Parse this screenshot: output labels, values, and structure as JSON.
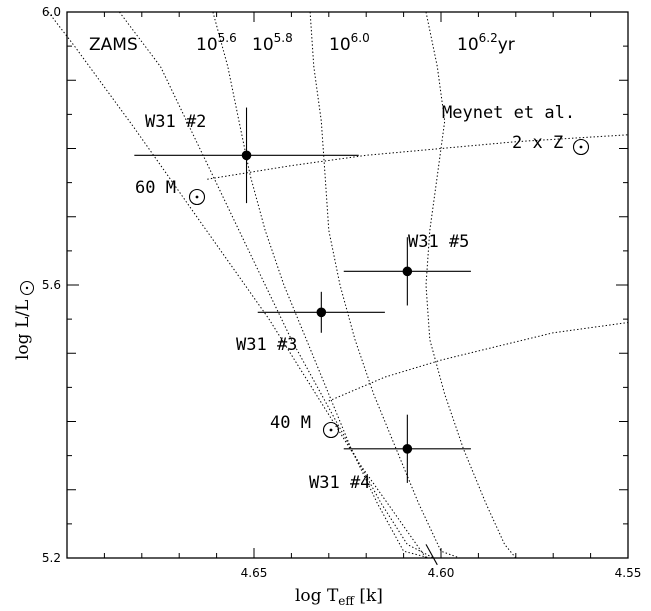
{
  "chart_data": {
    "type": "scatter",
    "title": "",
    "xlabel": "log T_eff [k]",
    "ylabel": "log L/L☉",
    "xlim": [
      4.7,
      4.55
    ],
    "ylim": [
      5.2,
      6.0
    ],
    "x_ticks": [
      "4.65",
      "4.60",
      "4.55"
    ],
    "y_ticks": [
      "5.2",
      "5.6",
      "6.0"
    ],
    "grid": false,
    "points": [
      {
        "name": "W31 #2",
        "x": 4.652,
        "y": 5.79,
        "xerr": 0.03,
        "yerr": 0.07
      },
      {
        "name": "W31 #5",
        "x": 4.609,
        "y": 5.62,
        "xerr": 0.017,
        "yerr": 0.05
      },
      {
        "name": "W31 #3",
        "x": 4.632,
        "y": 5.56,
        "xerr": 0.017,
        "yerr": 0.03
      },
      {
        "name": "W31 #4",
        "x": 4.609,
        "y": 5.36,
        "xerr": 0.017,
        "yerr": 0.05
      }
    ],
    "isochrones": [
      {
        "label_base": "10",
        "label_exp": "5.6",
        "label_suffix": "",
        "x": [
          4.686,
          4.675,
          4.668,
          4.661,
          4.654,
          4.647,
          4.64,
          4.632,
          4.624,
          4.616,
          4.609,
          4.602
        ],
        "y": [
          6.0,
          5.92,
          5.84,
          5.76,
          5.68,
          5.6,
          5.52,
          5.44,
          5.36,
          5.28,
          5.22,
          5.2
        ]
      },
      {
        "label_base": "10",
        "label_exp": "5.8",
        "label_suffix": "",
        "x": [
          4.661,
          4.657,
          4.654,
          4.651,
          4.647,
          4.642,
          4.636,
          4.63,
          4.624,
          4.617,
          4.61,
          4.603
        ],
        "y": [
          6.0,
          5.92,
          5.84,
          5.76,
          5.68,
          5.6,
          5.52,
          5.44,
          5.36,
          5.28,
          5.21,
          5.2
        ]
      },
      {
        "label_base": "10",
        "label_exp": "6.0",
        "label_suffix": "",
        "x": [
          4.635,
          4.634,
          4.632,
          4.631,
          4.63,
          4.627,
          4.623,
          4.618,
          4.612,
          4.606,
          4.6,
          4.595
        ],
        "y": [
          6.0,
          5.92,
          5.84,
          5.76,
          5.68,
          5.6,
          5.52,
          5.44,
          5.36,
          5.28,
          5.21,
          5.2
        ]
      },
      {
        "label_base": "10",
        "label_exp": "6.2",
        "label_suffix": "yr",
        "x": [
          4.604,
          4.601,
          4.599,
          4.601,
          4.603,
          4.604,
          4.603,
          4.599,
          4.594,
          4.588,
          4.583,
          4.58
        ],
        "y": [
          6.0,
          5.92,
          5.84,
          5.76,
          5.68,
          5.6,
          5.52,
          5.44,
          5.36,
          5.28,
          5.22,
          5.2
        ]
      }
    ],
    "tracks": [
      {
        "x": [
          4.6625,
          4.64,
          4.62,
          4.6,
          4.58,
          4.55
        ],
        "y": [
          5.755,
          5.775,
          5.79,
          5.8,
          5.81,
          5.82
        ]
      },
      {
        "x": [
          4.63,
          4.615,
          4.6,
          4.585,
          4.57,
          4.55
        ],
        "y": [
          5.43,
          5.465,
          5.49,
          5.51,
          5.53,
          5.545
        ]
      }
    ],
    "zams": {
      "x": [
        4.705,
        4.698,
        4.69,
        4.682,
        4.673,
        4.664,
        4.655,
        4.646,
        4.638,
        4.63,
        4.622,
        4.613,
        4.604
      ],
      "y": [
        6.0,
        5.95,
        5.89,
        5.83,
        5.76,
        5.69,
        5.62,
        5.55,
        5.48,
        5.41,
        5.34,
        5.27,
        5.2
      ]
    },
    "extra_segment": {
      "x": [
        4.604,
        4.601
      ],
      "y": [
        5.22,
        5.19
      ]
    }
  },
  "annotations": {
    "zams": "ZAMS",
    "meynet_line1": "Meynet et al.",
    "meynet_line2": "2 x Z",
    "mass_60": "60 M",
    "mass_40": "40 M",
    "w31_2": "W31 #2",
    "w31_5": "W31 #5",
    "w31_3": "W31 #3",
    "w31_4": "W31 #4"
  },
  "axes": {
    "x_title_main": "log T",
    "x_title_sub": "eff",
    "x_title_unit": " [k]",
    "y_title_main": "log L/L",
    "sun_symbol": "☉"
  }
}
